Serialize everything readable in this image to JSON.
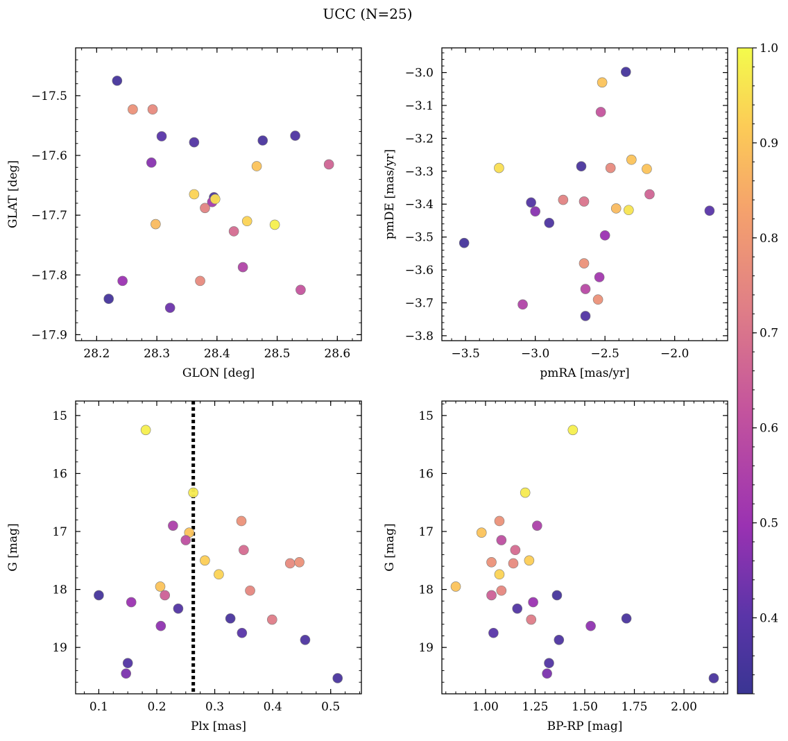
{
  "figure_title": "UCC (N=25)",
  "colorbar": {
    "range": [
      0.32,
      1.0
    ],
    "ticks": [
      0.4,
      0.5,
      0.6,
      0.7,
      0.8,
      0.9,
      1.0
    ],
    "tick_labels": [
      "0.4",
      "0.5",
      "0.6",
      "0.7",
      "0.8",
      "0.9",
      "1.0"
    ],
    "colormap": "plasma"
  },
  "chart_data": [
    {
      "type": "scatter",
      "xlabel": "GLON [deg]",
      "ylabel": "GLAT [deg]",
      "xlim": [
        28.165,
        28.64
      ],
      "ylim": [
        -17.91,
        -17.42
      ],
      "y_inverted": false,
      "xticks": [
        28.2,
        28.3,
        28.4,
        28.5,
        28.6
      ],
      "xtick_labels": [
        "28.2",
        "28.3",
        "28.4",
        "28.5",
        "28.6"
      ],
      "yticks": [
        -17.5,
        -17.6,
        -17.7,
        -17.8,
        -17.9
      ],
      "ytick_labels": [
        "−17.5",
        "−17.6",
        "−17.7",
        "−17.8",
        "−17.9"
      ],
      "points": [
        {
          "x": 28.234,
          "y": -17.475,
          "c": 0.35
        },
        {
          "x": 28.26,
          "y": -17.523,
          "c": 0.78
        },
        {
          "x": 28.293,
          "y": -17.523,
          "c": 0.76
        },
        {
          "x": 28.308,
          "y": -17.568,
          "c": 0.4
        },
        {
          "x": 28.291,
          "y": -17.612,
          "c": 0.47
        },
        {
          "x": 28.362,
          "y": -17.578,
          "c": 0.38
        },
        {
          "x": 28.476,
          "y": -17.575,
          "c": 0.36
        },
        {
          "x": 28.53,
          "y": -17.567,
          "c": 0.37
        },
        {
          "x": 28.586,
          "y": -17.615,
          "c": 0.66
        },
        {
          "x": 28.466,
          "y": -17.618,
          "c": 0.9
        },
        {
          "x": 28.362,
          "y": -17.665,
          "c": 0.93
        },
        {
          "x": 28.395,
          "y": -17.67,
          "c": 0.36
        },
        {
          "x": 28.392,
          "y": -17.678,
          "c": 0.53
        },
        {
          "x": 28.397,
          "y": -17.673,
          "c": 0.95
        },
        {
          "x": 28.38,
          "y": -17.688,
          "c": 0.74
        },
        {
          "x": 28.298,
          "y": -17.715,
          "c": 0.88
        },
        {
          "x": 28.45,
          "y": -17.71,
          "c": 0.93
        },
        {
          "x": 28.496,
          "y": -17.716,
          "c": 0.98
        },
        {
          "x": 28.428,
          "y": -17.727,
          "c": 0.68
        },
        {
          "x": 28.443,
          "y": -17.787,
          "c": 0.56
        },
        {
          "x": 28.372,
          "y": -17.81,
          "c": 0.76
        },
        {
          "x": 28.243,
          "y": -17.81,
          "c": 0.5
        },
        {
          "x": 28.539,
          "y": -17.825,
          "c": 0.62
        },
        {
          "x": 28.22,
          "y": -17.84,
          "c": 0.35
        },
        {
          "x": 28.322,
          "y": -17.855,
          "c": 0.43
        }
      ]
    },
    {
      "type": "scatter",
      "xlabel": "pmRA [mas/yr]",
      "ylabel": "pmDE [mas/yr]",
      "xlim": [
        -3.67,
        -1.62
      ],
      "ylim": [
        -3.815,
        -2.925
      ],
      "y_inverted": false,
      "xticks": [
        -3.5,
        -3.0,
        -2.5,
        -2.0
      ],
      "xtick_labels": [
        "−3.5",
        "−3.0",
        "−2.5",
        "−2.0"
      ],
      "yticks": [
        -3.0,
        -3.1,
        -3.2,
        -3.3,
        -3.4,
        -3.5,
        -3.6,
        -3.7,
        -3.8
      ],
      "ytick_labels": [
        "−3.0",
        "−3.1",
        "−3.2",
        "−3.3",
        "−3.4",
        "−3.5",
        "−3.6",
        "−3.7",
        "−3.8"
      ],
      "points": [
        {
          "x": -2.35,
          "y": -2.998,
          "c": 0.35
        },
        {
          "x": -2.52,
          "y": -3.03,
          "c": 0.9
        },
        {
          "x": -2.53,
          "y": -3.12,
          "c": 0.62
        },
        {
          "x": -2.31,
          "y": -3.265,
          "c": 0.9
        },
        {
          "x": -3.26,
          "y": -3.29,
          "c": 0.95
        },
        {
          "x": -2.67,
          "y": -3.285,
          "c": 0.36
        },
        {
          "x": -2.46,
          "y": -3.29,
          "c": 0.76
        },
        {
          "x": -2.2,
          "y": -3.293,
          "c": 0.9
        },
        {
          "x": -2.18,
          "y": -3.37,
          "c": 0.66
        },
        {
          "x": -2.8,
          "y": -3.387,
          "c": 0.74
        },
        {
          "x": -2.65,
          "y": -3.392,
          "c": 0.7
        },
        {
          "x": -3.03,
          "y": -3.395,
          "c": 0.38
        },
        {
          "x": -2.42,
          "y": -3.413,
          "c": 0.88
        },
        {
          "x": -2.33,
          "y": -3.418,
          "c": 0.96
        },
        {
          "x": -3.0,
          "y": -3.422,
          "c": 0.47
        },
        {
          "x": -1.75,
          "y": -3.42,
          "c": 0.4
        },
        {
          "x": -2.9,
          "y": -3.457,
          "c": 0.37
        },
        {
          "x": -2.5,
          "y": -3.495,
          "c": 0.5
        },
        {
          "x": -3.51,
          "y": -3.518,
          "c": 0.35
        },
        {
          "x": -2.65,
          "y": -3.58,
          "c": 0.78
        },
        {
          "x": -2.54,
          "y": -3.622,
          "c": 0.52
        },
        {
          "x": -2.64,
          "y": -3.658,
          "c": 0.58
        },
        {
          "x": -2.55,
          "y": -3.69,
          "c": 0.78
        },
        {
          "x": -3.09,
          "y": -3.705,
          "c": 0.56
        },
        {
          "x": -2.64,
          "y": -3.74,
          "c": 0.38
        }
      ]
    },
    {
      "type": "scatter",
      "xlabel": "Plx [mas]",
      "ylabel": "G [mag]",
      "xlim": [
        0.06,
        0.553
      ],
      "ylim": [
        14.75,
        19.8
      ],
      "y_inverted": true,
      "xticks": [
        0.1,
        0.2,
        0.3,
        0.4,
        0.5
      ],
      "xtick_labels": [
        "0.1",
        "0.2",
        "0.3",
        "0.4",
        "0.5"
      ],
      "yticks": [
        15,
        16,
        17,
        18,
        19
      ],
      "ytick_labels": [
        "15",
        "16",
        "17",
        "18",
        "19"
      ],
      "vline": {
        "x": 0.263,
        "style": "dotted"
      },
      "points": [
        {
          "x": 0.181,
          "y": 15.25,
          "c": 0.98
        },
        {
          "x": 0.263,
          "y": 16.33,
          "c": 0.97
        },
        {
          "x": 0.228,
          "y": 16.9,
          "c": 0.55
        },
        {
          "x": 0.346,
          "y": 16.82,
          "c": 0.78
        },
        {
          "x": 0.256,
          "y": 17.02,
          "c": 0.9
        },
        {
          "x": 0.25,
          "y": 17.15,
          "c": 0.6
        },
        {
          "x": 0.35,
          "y": 17.32,
          "c": 0.68
        },
        {
          "x": 0.283,
          "y": 17.5,
          "c": 0.92
        },
        {
          "x": 0.43,
          "y": 17.55,
          "c": 0.76
        },
        {
          "x": 0.446,
          "y": 17.53,
          "c": 0.78
        },
        {
          "x": 0.307,
          "y": 17.74,
          "c": 0.93
        },
        {
          "x": 0.206,
          "y": 17.95,
          "c": 0.9
        },
        {
          "x": 0.361,
          "y": 18.02,
          "c": 0.75
        },
        {
          "x": 0.1,
          "y": 18.1,
          "c": 0.35
        },
        {
          "x": 0.214,
          "y": 18.1,
          "c": 0.65
        },
        {
          "x": 0.156,
          "y": 18.22,
          "c": 0.5
        },
        {
          "x": 0.237,
          "y": 18.33,
          "c": 0.38
        },
        {
          "x": 0.327,
          "y": 18.5,
          "c": 0.36
        },
        {
          "x": 0.399,
          "y": 18.52,
          "c": 0.72
        },
        {
          "x": 0.207,
          "y": 18.63,
          "c": 0.48
        },
        {
          "x": 0.347,
          "y": 18.75,
          "c": 0.4
        },
        {
          "x": 0.456,
          "y": 18.87,
          "c": 0.37
        },
        {
          "x": 0.15,
          "y": 19.27,
          "c": 0.38
        },
        {
          "x": 0.147,
          "y": 19.45,
          "c": 0.45
        },
        {
          "x": 0.512,
          "y": 19.53,
          "c": 0.36
        }
      ]
    },
    {
      "type": "scatter",
      "xlabel": "BP-RP [mag]",
      "ylabel": "G [mag]",
      "xlim": [
        0.78,
        2.22
      ],
      "ylim": [
        14.75,
        19.8
      ],
      "y_inverted": true,
      "xticks": [
        1.0,
        1.25,
        1.5,
        1.75,
        2.0
      ],
      "xtick_labels": [
        "1.00",
        "1.25",
        "1.50",
        "1.75",
        "2.00"
      ],
      "yticks": [
        15,
        16,
        17,
        18,
        19
      ],
      "ytick_labels": [
        "15",
        "16",
        "17",
        "18",
        "19"
      ],
      "points": [
        {
          "x": 1.44,
          "y": 15.25,
          "c": 0.98
        },
        {
          "x": 1.2,
          "y": 16.33,
          "c": 0.97
        },
        {
          "x": 1.07,
          "y": 16.82,
          "c": 0.78
        },
        {
          "x": 1.26,
          "y": 16.9,
          "c": 0.55
        },
        {
          "x": 0.98,
          "y": 17.02,
          "c": 0.9
        },
        {
          "x": 1.08,
          "y": 17.15,
          "c": 0.6
        },
        {
          "x": 1.15,
          "y": 17.32,
          "c": 0.68
        },
        {
          "x": 1.22,
          "y": 17.5,
          "c": 0.92
        },
        {
          "x": 1.03,
          "y": 17.53,
          "c": 0.78
        },
        {
          "x": 1.14,
          "y": 17.55,
          "c": 0.76
        },
        {
          "x": 1.07,
          "y": 17.74,
          "c": 0.93
        },
        {
          "x": 0.85,
          "y": 17.95,
          "c": 0.9
        },
        {
          "x": 1.08,
          "y": 18.02,
          "c": 0.75
        },
        {
          "x": 1.03,
          "y": 18.1,
          "c": 0.65
        },
        {
          "x": 1.36,
          "y": 18.1,
          "c": 0.35
        },
        {
          "x": 1.24,
          "y": 18.22,
          "c": 0.5
        },
        {
          "x": 1.16,
          "y": 18.33,
          "c": 0.38
        },
        {
          "x": 1.71,
          "y": 18.5,
          "c": 0.36
        },
        {
          "x": 1.23,
          "y": 18.52,
          "c": 0.72
        },
        {
          "x": 1.53,
          "y": 18.63,
          "c": 0.48
        },
        {
          "x": 1.04,
          "y": 18.75,
          "c": 0.4
        },
        {
          "x": 1.37,
          "y": 18.87,
          "c": 0.37
        },
        {
          "x": 1.32,
          "y": 19.27,
          "c": 0.38
        },
        {
          "x": 1.31,
          "y": 19.45,
          "c": 0.45
        },
        {
          "x": 2.15,
          "y": 19.53,
          "c": 0.36
        }
      ]
    }
  ]
}
